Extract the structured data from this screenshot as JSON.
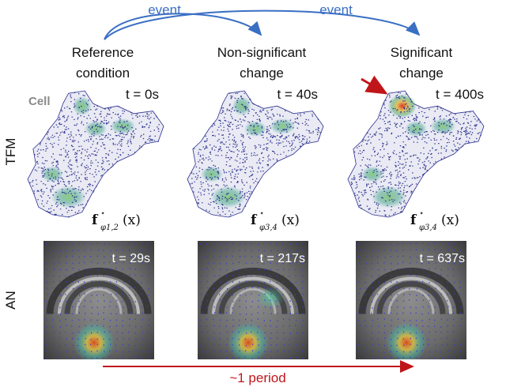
{
  "events": {
    "label_1": "event",
    "label_2": "event",
    "color": "#3a6fc4"
  },
  "columns": [
    {
      "heading_line1": "Reference",
      "heading_line2": "condition",
      "tfm_time": "t = 0s",
      "formula_sub": "φ1,2",
      "an_time": "t = 29s",
      "hotspot": false
    },
    {
      "heading_line1": "Non-significant",
      "heading_line2": "change",
      "tfm_time": "t = 40s",
      "formula_sub": "φ3,4",
      "an_time": "t = 217s",
      "hotspot": false
    },
    {
      "heading_line1": "Significant",
      "heading_line2": "change",
      "tfm_time": "t = 400s",
      "formula_sub": "φ3,4",
      "an_time": "t = 637s",
      "hotspot": true
    }
  ],
  "rows": {
    "tfm": "TFM",
    "an": "AN"
  },
  "cell_label": "Cell",
  "formula": {
    "main": "f",
    "star": "⋆",
    "arg": "(x)"
  },
  "period": {
    "label": "~1 period",
    "color": "#c0161a"
  },
  "colors": {
    "mesh": "#2b2f8f",
    "hot": "#d23b1a",
    "warm": "#d8c94a",
    "green": "#3fa76a",
    "cyan": "#3ec8c8"
  }
}
